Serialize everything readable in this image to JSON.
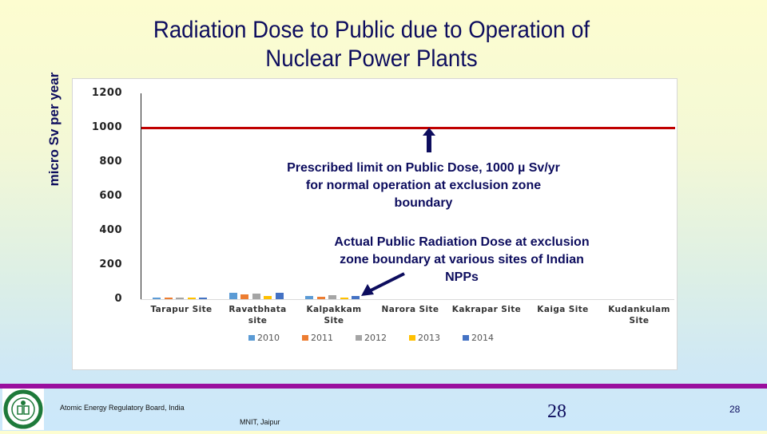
{
  "slide": {
    "title_line1": "Radiation Dose to Public due to Operation of",
    "title_line2": "Nuclear Power Plants",
    "annotation_limit": "Prescribed limit on Public Dose, 1000 µ Sv/yr for normal operation at exclusion zone boundary",
    "annotation_limit_lines": [
      "Prescribed limit on Public Dose, 1000 µ Sv/yr",
      "for normal operation at exclusion zone",
      "boundary"
    ],
    "annotation_actual_lines": [
      "Actual Public Radiation Dose at exclusion",
      "zone boundary at various sites of Indian",
      "NPPs"
    ],
    "icons": {
      "up_arrow": "arrow-up-icon",
      "diag_arrow": "arrow-down-left-icon"
    }
  },
  "footer": {
    "organization": "Atomic Energy Regulatory Board, India",
    "venue": "MNIT, Jaipur",
    "page_center": "28",
    "page_right": "28",
    "accent_color": "#9a0f9e"
  },
  "chart_data": {
    "type": "bar",
    "title": "Radiation Dose to Public due to Operation of Nuclear Power Plants",
    "xlabel": "",
    "ylabel": "micro Sv per year",
    "ylim": [
      0,
      1200
    ],
    "yticks": [
      0,
      200,
      400,
      600,
      800,
      1000,
      1200
    ],
    "grid": false,
    "legend_position": "bottom",
    "categories": [
      "Tarapur Site",
      "Ravatbhata site",
      "Kalpakkam Site",
      "Narora Site",
      "Kakrapar Site",
      "Kaiga Site",
      "Kudankulam Site"
    ],
    "series": [
      {
        "name": "2010",
        "color": "#5b9bd5",
        "values": [
          9,
          35,
          18,
          0,
          0,
          0,
          0
        ]
      },
      {
        "name": "2011",
        "color": "#ed7d31",
        "values": [
          5,
          30,
          13,
          0,
          0,
          0,
          0
        ]
      },
      {
        "name": "2012",
        "color": "#a5a5a5",
        "values": [
          5,
          32,
          25,
          0,
          0,
          0,
          0
        ]
      },
      {
        "name": "2013",
        "color": "#ffc000",
        "values": [
          6,
          20,
          7,
          0,
          0,
          0,
          0
        ]
      },
      {
        "name": "2014",
        "color": "#4472c4",
        "values": [
          5,
          36,
          18,
          0,
          0,
          0,
          0
        ]
      }
    ],
    "reference_line": {
      "value": 1000,
      "color": "#c00000",
      "label": "Prescribed limit on Public Dose, 1000 µ Sv/yr"
    }
  }
}
